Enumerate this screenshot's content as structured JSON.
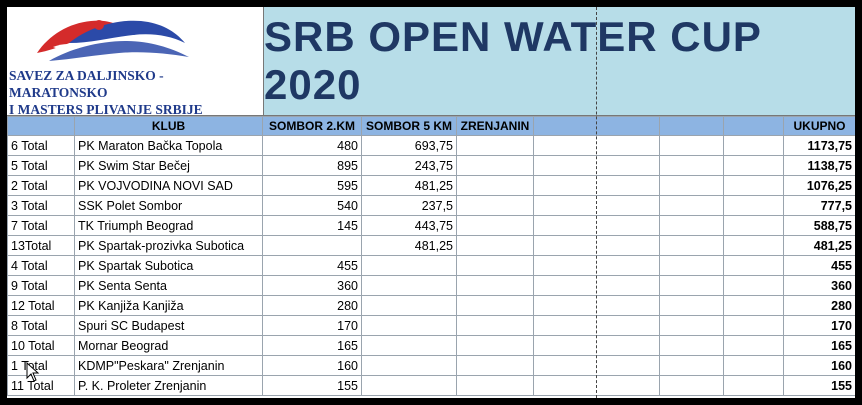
{
  "header": {
    "org_name": "SAVEZ ZA DALJINSKO - MARATONSKO\nI MASTERS PLIVANJE SRBIJE",
    "title": "SRB OPEN WATER CUP 2020"
  },
  "colors": {
    "title_bg": "#b7dde8",
    "title_text": "#1f3864",
    "header_row_bg": "#8db4e2",
    "logo_blue": "#2b4aa8",
    "logo_red": "#d42b2b"
  },
  "table": {
    "columns": [
      "",
      "KLUB",
      "SOMBOR 2.KM",
      "SOMBOR 5 KM",
      "ZRENJANIN",
      "",
      "",
      "",
      "UKUPNO"
    ],
    "rows": [
      [
        "6 Total",
        "PK Maraton Bačka Topola",
        "480",
        "693,75",
        "",
        "",
        "",
        "",
        "1173,75"
      ],
      [
        "5 Total",
        "PK Swim Star Bečej",
        "895",
        "243,75",
        "",
        "",
        "",
        "",
        "1138,75"
      ],
      [
        "2 Total",
        "PK VOJVODINA NOVI SAD",
        "595",
        "481,25",
        "",
        "",
        "",
        "",
        "1076,25"
      ],
      [
        "3 Total",
        "SSK Polet Sombor",
        "540",
        "237,5",
        "",
        "",
        "",
        "",
        "777,5"
      ],
      [
        "7 Total",
        "TK Triumph Beograd",
        "145",
        "443,75",
        "",
        "",
        "",
        "",
        "588,75"
      ],
      [
        "13Total",
        "PK Spartak-prozivka Subotica",
        "",
        "481,25",
        "",
        "",
        "",
        "",
        "481,25"
      ],
      [
        "4 Total",
        "PK Spartak Subotica",
        "455",
        "",
        "",
        "",
        "",
        "",
        "455"
      ],
      [
        "9 Total",
        "PK Senta Senta",
        "360",
        "",
        "",
        "",
        "",
        "",
        "360"
      ],
      [
        "12 Total",
        "PK Kanjiža Kanjiža",
        "280",
        "",
        "",
        "",
        "",
        "",
        "280"
      ],
      [
        "8 Total",
        "Spuri SC Budapest",
        "170",
        "",
        "",
        "",
        "",
        "",
        "170"
      ],
      [
        "10 Total",
        "Mornar Beograd",
        "165",
        "",
        "",
        "",
        "",
        "",
        "165"
      ],
      [
        "1 Total",
        "KDMP\"Peskara\" Zrenjanin",
        "160",
        "",
        "",
        "",
        "",
        "",
        "160"
      ],
      [
        "11 Total",
        "P. K. Proleter Zrenjanin",
        "155",
        "",
        "",
        "",
        "",
        "",
        "155"
      ]
    ]
  }
}
